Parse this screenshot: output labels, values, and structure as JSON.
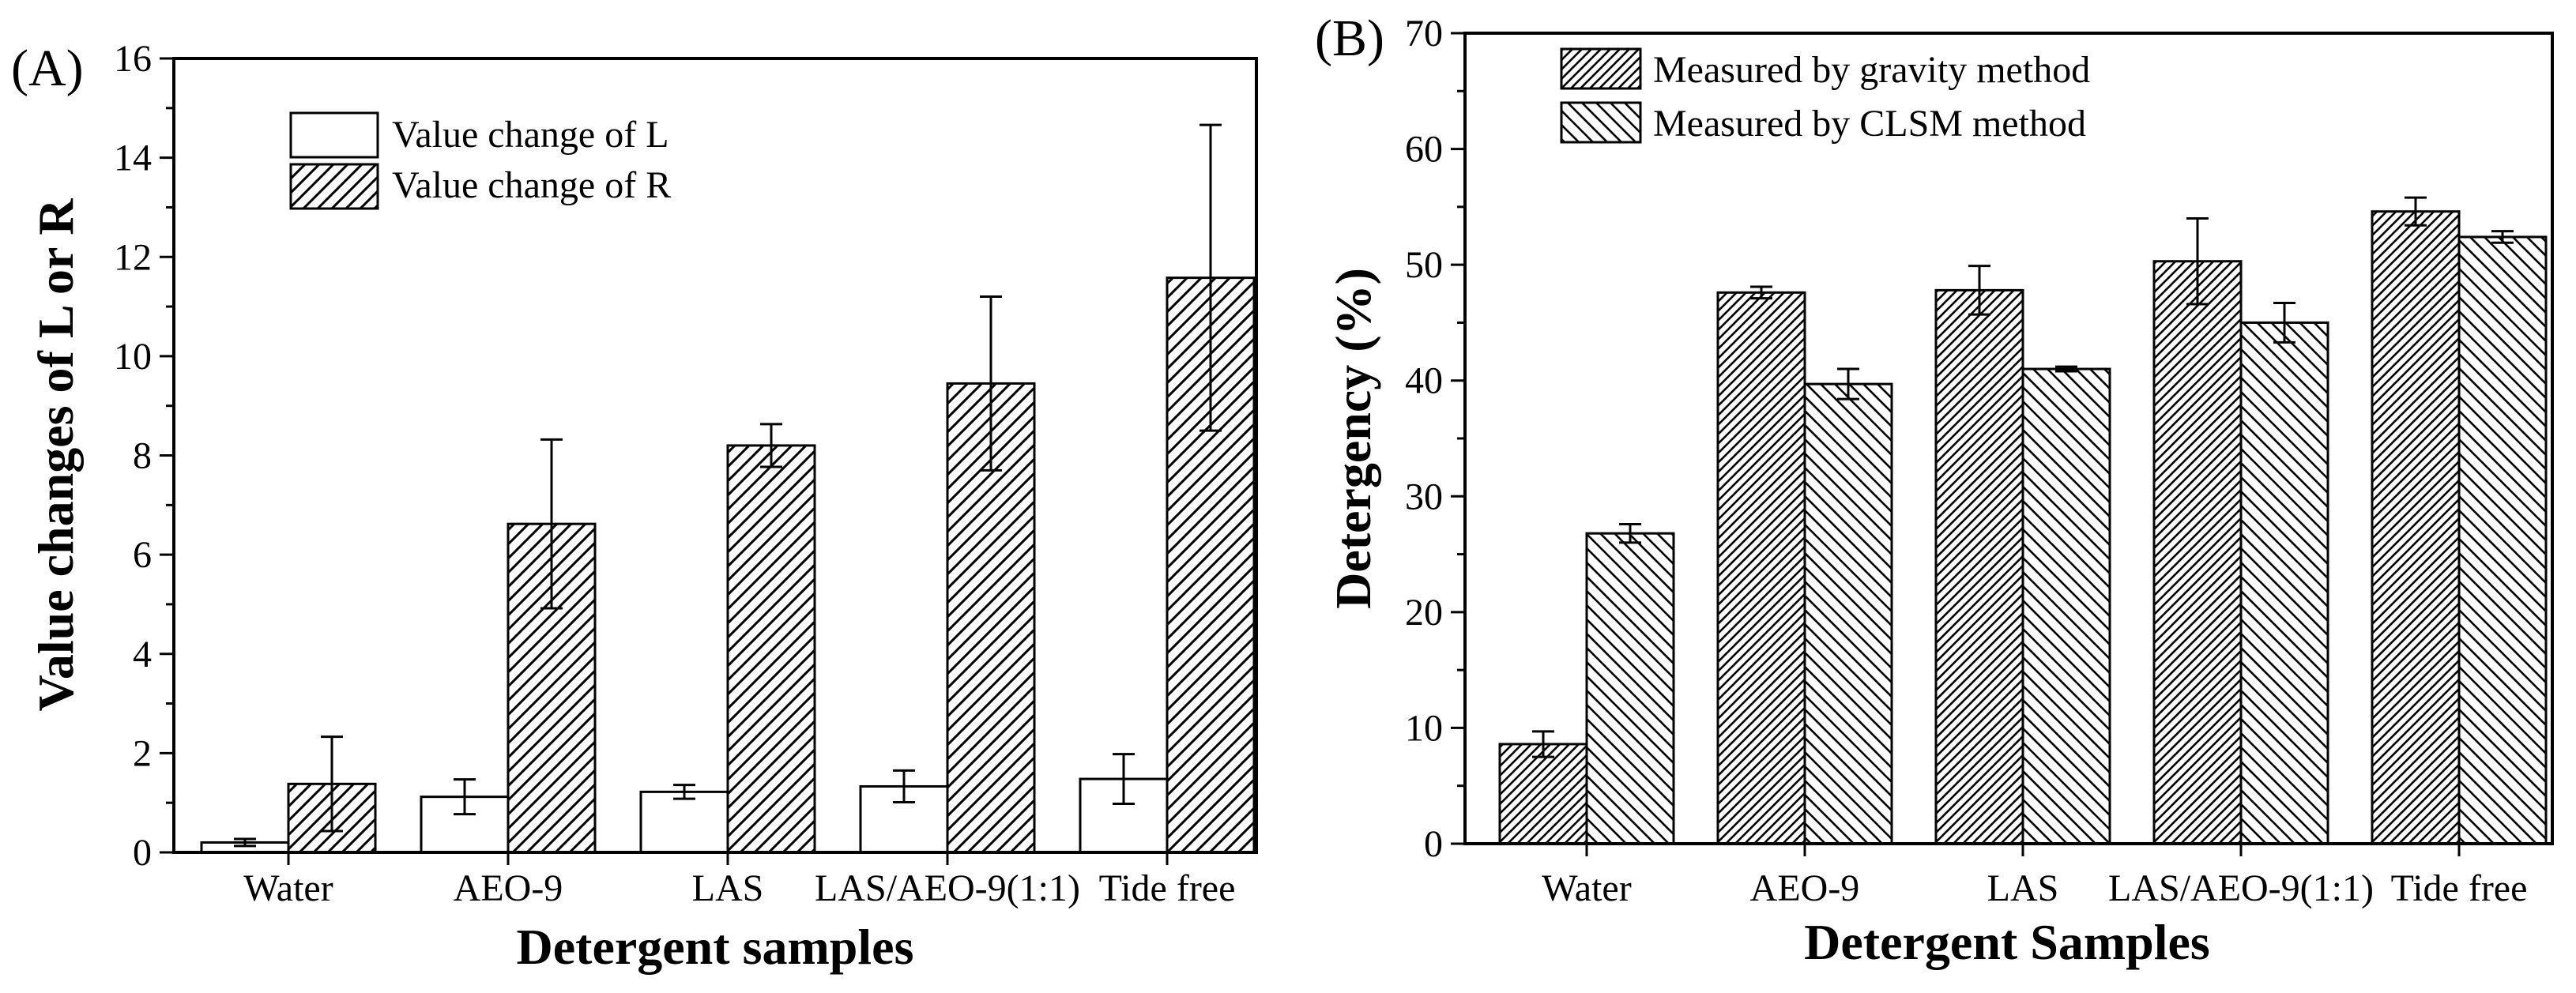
{
  "colors": {
    "ink": "#000000",
    "fill": "#ffffff"
  },
  "chart_data": [
    {
      "type": "bar",
      "panel_label": "(A)",
      "categories": [
        "Water",
        "AEO-9",
        "LAS",
        "LAS/AEO-9(1:1)",
        "Tide free"
      ],
      "series": [
        {
          "name": "Value change of L",
          "pattern": "none",
          "values": [
            0.2,
            1.12,
            1.22,
            1.33,
            1.48
          ],
          "errors": [
            0.07,
            0.35,
            0.14,
            0.32,
            0.5
          ]
        },
        {
          "name": "Value change of R",
          "pattern": "hatch-forward",
          "values": [
            1.38,
            6.62,
            8.2,
            9.45,
            11.58
          ],
          "errors": [
            0.95,
            1.7,
            0.43,
            1.75,
            3.08
          ]
        }
      ],
      "xlabel": "Detergent samples",
      "ylabel": "Value changes of L or R",
      "ylim": [
        0,
        16
      ],
      "yticks": [
        0,
        2,
        4,
        6,
        8,
        10,
        12,
        14,
        16
      ],
      "grid": false,
      "legend_position": "top-center"
    },
    {
      "type": "bar",
      "panel_label": "(B)",
      "categories": [
        "Water",
        "AEO-9",
        "LAS",
        "LAS/AEO-9(1:1)",
        "Tide free"
      ],
      "series": [
        {
          "name": "Measured by gravity method",
          "pattern": "hatch-dense-forward",
          "values": [
            8.6,
            47.6,
            47.8,
            50.3,
            54.6
          ],
          "errors": [
            1.1,
            0.5,
            2.1,
            3.7,
            1.2
          ]
        },
        {
          "name": "Measured by CLSM method",
          "pattern": "hatch-backward",
          "values": [
            26.8,
            39.7,
            41.0,
            45.0,
            52.4
          ],
          "errors": [
            0.8,
            1.3,
            0.2,
            1.7,
            0.5
          ]
        }
      ],
      "xlabel": "Detergent Samples",
      "ylabel": "Detergency (%)",
      "ylim": [
        0,
        70
      ],
      "yticks": [
        0,
        10,
        20,
        30,
        40,
        50,
        60,
        70
      ],
      "grid": false,
      "legend_position": "top-left"
    }
  ]
}
